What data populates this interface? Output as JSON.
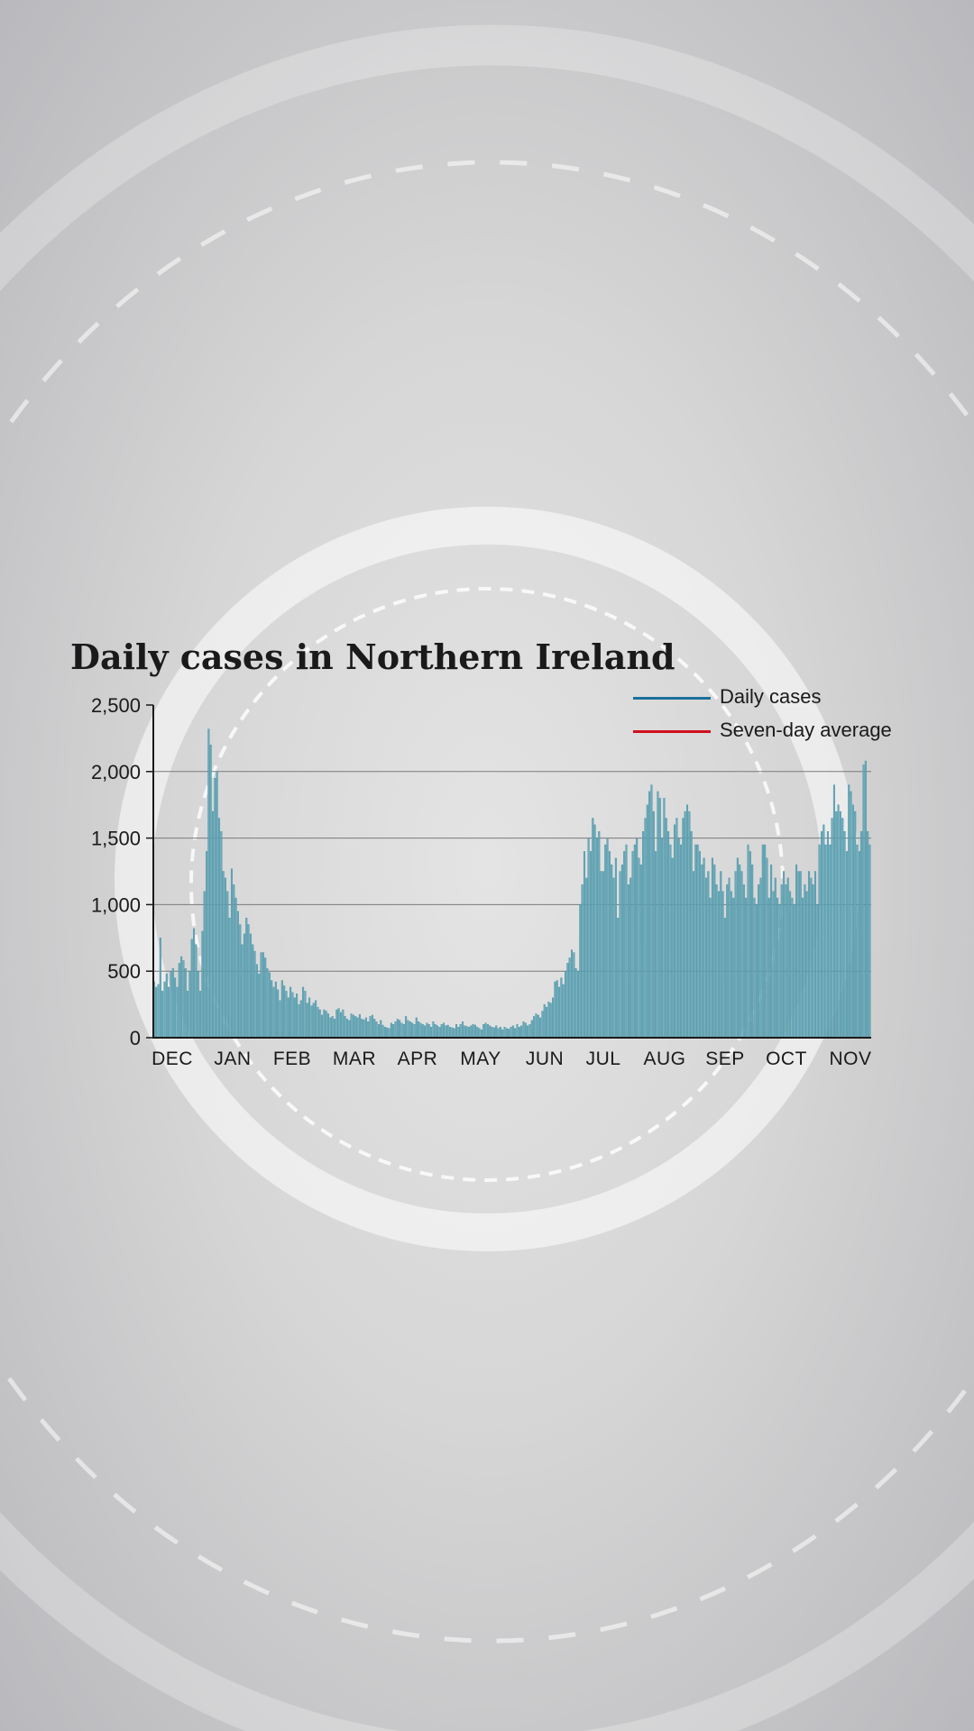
{
  "colors": {
    "bar": "#6aaab8",
    "bar_stroke": "#3c8aa0",
    "daily_line": "#1d6f9b",
    "average_line": "#d0101c",
    "grid": "#7a7a7a",
    "axis": "#1a1a1a"
  },
  "chart_data": {
    "type": "bar",
    "title": "Daily cases in Northern Ireland",
    "xlabel": "",
    "ylabel": "",
    "ylim": [
      0,
      2500
    ],
    "y_ticks": [
      0,
      500,
      1000,
      1500,
      2000,
      2500
    ],
    "y_tick_labels": [
      "0",
      "500",
      "1,000",
      "1,500",
      "2,000",
      "2,500"
    ],
    "month_labels": [
      "DEC",
      "JAN",
      "FEB",
      "MAR",
      "APR",
      "MAY",
      "JUN",
      "JUL",
      "AUG",
      "SEP",
      "OCT",
      "NOV"
    ],
    "grid": true,
    "legend_position": "top-right",
    "legend": [
      {
        "name": "Daily cases",
        "color": "#1d6f9b"
      },
      {
        "name": "Seven-day average",
        "color": "#d0101c"
      }
    ],
    "series": [
      {
        "name": "Daily cases",
        "values": [
          420,
          380,
          400,
          750,
          350,
          420,
          480,
          380,
          500,
          520,
          450,
          380,
          560,
          610,
          580,
          520,
          350,
          500,
          740,
          820,
          700,
          500,
          350,
          800,
          1100,
          1400,
          2320,
          2200,
          1700,
          1950,
          2000,
          1650,
          1550,
          1250,
          1200,
          1100,
          900,
          1270,
          1150,
          1050,
          950,
          850,
          700,
          780,
          900,
          850,
          780,
          700,
          650,
          550,
          480,
          640,
          640,
          600,
          520,
          490,
          430,
          380,
          420,
          360,
          280,
          430,
          390,
          350,
          300,
          380,
          340,
          300,
          330,
          250,
          280,
          380,
          350,
          260,
          300,
          240,
          260,
          280,
          230,
          210,
          170,
          210,
          200,
          180,
          150,
          160,
          140,
          210,
          220,
          190,
          210,
          160,
          140,
          130,
          180,
          170,
          160,
          150,
          175,
          140,
          135,
          150,
          120,
          160,
          170,
          140,
          120,
          100,
          130,
          95,
          80,
          75,
          70,
          110,
          100,
          120,
          140,
          130,
          110,
          100,
          160,
          130,
          120,
          110,
          100,
          150,
          120,
          110,
          100,
          90,
          110,
          100,
          80,
          120,
          100,
          90,
          80,
          100,
          110,
          90,
          95,
          80,
          75,
          70,
          100,
          80,
          100,
          120,
          90,
          85,
          80,
          90,
          100,
          95,
          80,
          70,
          60,
          100,
          110,
          100,
          90,
          80,
          75,
          90,
          70,
          80,
          60,
          80,
          70,
          65,
          80,
          90,
          70,
          100,
          80,
          90,
          120,
          110,
          90,
          100,
          130,
          160,
          180,
          170,
          150,
          200,
          250,
          230,
          270,
          260,
          300,
          420,
          430,
          380,
          450,
          400,
          500,
          560,
          600,
          660,
          640,
          520,
          500,
          1000,
          1150,
          1400,
          1200,
          1500,
          1400,
          1650,
          1600,
          1500,
          1550,
          1250,
          1250,
          1450,
          1500,
          1400,
          1300,
          1200,
          1350,
          900,
          1250,
          1300,
          1400,
          1450,
          1150,
          1200,
          1400,
          1450,
          1500,
          1350,
          1300,
          1550,
          1650,
          1750,
          1850,
          1900,
          1700,
          1400,
          1850,
          1800,
          1500,
          1800,
          1650,
          1550,
          1450,
          1350,
          1600,
          1650,
          1500,
          1450,
          1650,
          1700,
          1750,
          1700,
          1550,
          1250,
          1450,
          1450,
          1400,
          1300,
          1350,
          1200,
          1250,
          1050,
          1350,
          1300,
          1150,
          1100,
          1250,
          1100,
          900,
          1150,
          1200,
          1100,
          1050,
          1250,
          1350,
          1300,
          1250,
          1150,
          1050,
          1450,
          1400,
          1300,
          1050,
          1000,
          1150,
          1200,
          1450,
          1450,
          1350,
          1050,
          1300,
          1100,
          1200,
          1050,
          1000,
          1150,
          1250,
          1150,
          1200,
          1100,
          1050,
          1000,
          1300,
          1250,
          1250,
          1050,
          1150,
          1100,
          1250,
          1200,
          1150,
          1250,
          1000,
          1450,
          1550,
          1600,
          1450,
          1550,
          1450,
          1650,
          1900,
          1700,
          1750,
          1700,
          1650,
          1550,
          1400,
          1900,
          1850,
          1750,
          1700,
          1450,
          1400,
          1550,
          2050,
          2080,
          1550,
          1450
        ]
      },
      {
        "name": "Seven-day average",
        "values": []
      }
    ]
  }
}
